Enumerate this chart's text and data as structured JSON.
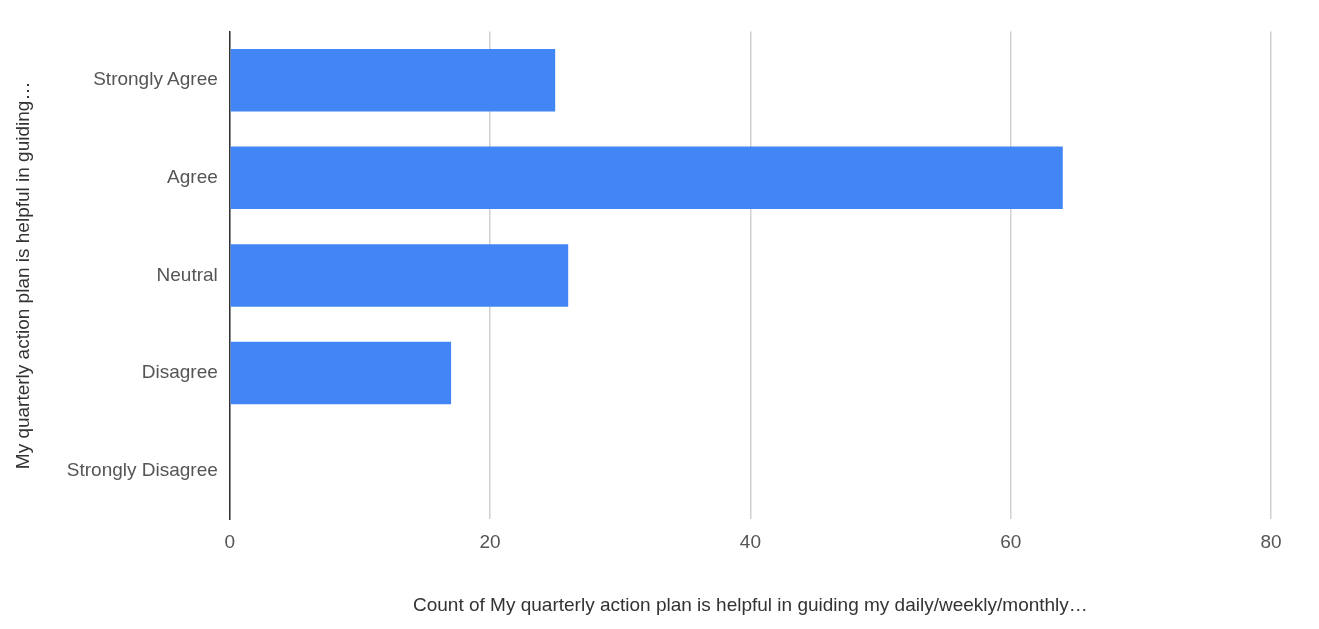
{
  "chart_data": {
    "type": "bar",
    "orientation": "horizontal",
    "categories": [
      "Strongly Agree",
      "Agree",
      "Neutral",
      "Disagree",
      "Strongly Disagree"
    ],
    "values": [
      25,
      64,
      26,
      17,
      0
    ],
    "color": "#4285f4",
    "xlabel": "Count of My quarterly action plan is helpful in guiding my daily/weekly/monthly…",
    "ylabel": "My quarterly action plan is helpful in guiding…",
    "xlim": [
      0,
      80
    ],
    "xticks": [
      0,
      20,
      40,
      60,
      80
    ],
    "grid": "x",
    "legend": false
  }
}
